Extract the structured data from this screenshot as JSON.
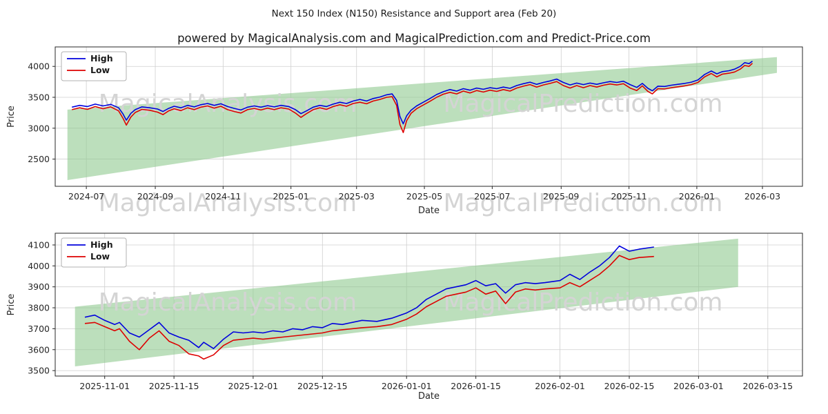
{
  "page": {
    "title": "Next 150 Index (N150) Resistance and Support area (Feb 20)",
    "subtitle": "powered by MagicalAnalysis.com and MagicalPrediction.com and Predict-Price.com"
  },
  "watermarks": [
    "MagicalAnalysis.com",
    "MagicalPrediction.com"
  ],
  "colors": {
    "high": "#0000dd",
    "low": "#dd0000",
    "band": "#8fc98f",
    "grid": "#cfcfcf",
    "spine": "#262626",
    "tick_text": "#262626",
    "watermark": "#d4d4d4"
  },
  "chart_data": [
    {
      "type": "line",
      "xlabel": "Date",
      "ylabel": "Price",
      "legend_position": "upper-left",
      "grid": true,
      "xlim": [
        "2024-06-03",
        "2026-04-06"
      ],
      "ylim": [
        2060,
        4315
      ],
      "y_ticks": [
        2500,
        3000,
        3500,
        4000
      ],
      "x_ticks": [
        {
          "date": "2024-07-01",
          "label": "2024-07"
        },
        {
          "date": "2024-09-01",
          "label": "2024-09"
        },
        {
          "date": "2024-11-01",
          "label": "2024-11"
        },
        {
          "date": "2025-01-01",
          "label": "2025-01"
        },
        {
          "date": "2025-03-01",
          "label": "2025-03"
        },
        {
          "date": "2025-05-01",
          "label": "2025-05"
        },
        {
          "date": "2025-07-01",
          "label": "2025-07"
        },
        {
          "date": "2025-09-01",
          "label": "2025-09"
        },
        {
          "date": "2025-11-01",
          "label": "2025-11"
        },
        {
          "date": "2026-01-01",
          "label": "2026-01"
        },
        {
          "date": "2026-03-01",
          "label": "2026-03"
        }
      ],
      "band": {
        "x": [
          "2024-06-14",
          "2026-03-14"
        ],
        "top": [
          3300,
          4150
        ],
        "bottom": [
          2160,
          3895
        ]
      },
      "series": [
        {
          "label": "High",
          "color_key": "high",
          "column": 1
        },
        {
          "label": "Low",
          "color_key": "low",
          "column": 2
        }
      ],
      "columns": [
        "date",
        "high",
        "low"
      ],
      "rows": [
        [
          "2024-06-18",
          3340,
          3300
        ],
        [
          "2024-06-25",
          3370,
          3330
        ],
        [
          "2024-07-02",
          3350,
          3305
        ],
        [
          "2024-07-09",
          3390,
          3350
        ],
        [
          "2024-07-16",
          3360,
          3315
        ],
        [
          "2024-07-23",
          3385,
          3345
        ],
        [
          "2024-07-30",
          3330,
          3280
        ],
        [
          "2024-08-03",
          3230,
          3160
        ],
        [
          "2024-08-06",
          3130,
          3050
        ],
        [
          "2024-08-10",
          3240,
          3180
        ],
        [
          "2024-08-14",
          3300,
          3255
        ],
        [
          "2024-08-20",
          3345,
          3305
        ],
        [
          "2024-08-27",
          3330,
          3290
        ],
        [
          "2024-09-03",
          3310,
          3260
        ],
        [
          "2024-09-08",
          3270,
          3220
        ],
        [
          "2024-09-13",
          3320,
          3280
        ],
        [
          "2024-09-18",
          3355,
          3315
        ],
        [
          "2024-09-24",
          3330,
          3285
        ],
        [
          "2024-09-30",
          3370,
          3330
        ],
        [
          "2024-10-06",
          3345,
          3300
        ],
        [
          "2024-10-12",
          3380,
          3340
        ],
        [
          "2024-10-18",
          3400,
          3360
        ],
        [
          "2024-10-24",
          3370,
          3325
        ],
        [
          "2024-10-30",
          3395,
          3355
        ],
        [
          "2024-11-05",
          3350,
          3300
        ],
        [
          "2024-11-11",
          3320,
          3270
        ],
        [
          "2024-11-17",
          3295,
          3245
        ],
        [
          "2024-11-23",
          3340,
          3300
        ],
        [
          "2024-11-29",
          3360,
          3320
        ],
        [
          "2024-12-05",
          3340,
          3295
        ],
        [
          "2024-12-11",
          3365,
          3325
        ],
        [
          "2024-12-17",
          3345,
          3300
        ],
        [
          "2024-12-23",
          3370,
          3330
        ],
        [
          "2024-12-30",
          3350,
          3310
        ],
        [
          "2025-01-05",
          3300,
          3245
        ],
        [
          "2025-01-10",
          3235,
          3175
        ],
        [
          "2025-01-15",
          3280,
          3235
        ],
        [
          "2025-01-21",
          3340,
          3300
        ],
        [
          "2025-01-27",
          3370,
          3330
        ],
        [
          "2025-02-02",
          3350,
          3305
        ],
        [
          "2025-02-08",
          3390,
          3350
        ],
        [
          "2025-02-14",
          3420,
          3380
        ],
        [
          "2025-02-20",
          3400,
          3355
        ],
        [
          "2025-02-26",
          3440,
          3400
        ],
        [
          "2025-03-04",
          3465,
          3420
        ],
        [
          "2025-03-10",
          3440,
          3395
        ],
        [
          "2025-03-16",
          3480,
          3440
        ],
        [
          "2025-03-22",
          3505,
          3465
        ],
        [
          "2025-03-28",
          3540,
          3500
        ],
        [
          "2025-04-02",
          3555,
          3510
        ],
        [
          "2025-04-06",
          3450,
          3370
        ],
        [
          "2025-04-09",
          3190,
          3060
        ],
        [
          "2025-04-12",
          3070,
          2930
        ],
        [
          "2025-04-15",
          3200,
          3120
        ],
        [
          "2025-04-19",
          3290,
          3240
        ],
        [
          "2025-04-24",
          3360,
          3315
        ],
        [
          "2025-04-30",
          3420,
          3375
        ],
        [
          "2025-05-06",
          3480,
          3435
        ],
        [
          "2025-05-12",
          3545,
          3500
        ],
        [
          "2025-05-18",
          3590,
          3550
        ],
        [
          "2025-05-24",
          3625,
          3580
        ],
        [
          "2025-05-30",
          3600,
          3555
        ],
        [
          "2025-06-05",
          3640,
          3600
        ],
        [
          "2025-06-11",
          3615,
          3570
        ],
        [
          "2025-06-17",
          3650,
          3610
        ],
        [
          "2025-06-23",
          3630,
          3585
        ],
        [
          "2025-06-29",
          3655,
          3615
        ],
        [
          "2025-07-05",
          3640,
          3595
        ],
        [
          "2025-07-11",
          3665,
          3625
        ],
        [
          "2025-07-17",
          3645,
          3600
        ],
        [
          "2025-07-23",
          3690,
          3650
        ],
        [
          "2025-07-29",
          3720,
          3680
        ],
        [
          "2025-08-04",
          3745,
          3705
        ],
        [
          "2025-08-10",
          3710,
          3665
        ],
        [
          "2025-08-16",
          3740,
          3700
        ],
        [
          "2025-08-22",
          3765,
          3725
        ],
        [
          "2025-08-28",
          3795,
          3755
        ],
        [
          "2025-09-03",
          3740,
          3690
        ],
        [
          "2025-09-09",
          3700,
          3650
        ],
        [
          "2025-09-15",
          3730,
          3690
        ],
        [
          "2025-09-21",
          3705,
          3655
        ],
        [
          "2025-09-27",
          3730,
          3690
        ],
        [
          "2025-10-03",
          3710,
          3665
        ],
        [
          "2025-10-09",
          3735,
          3695
        ],
        [
          "2025-10-15",
          3755,
          3715
        ],
        [
          "2025-10-21",
          3740,
          3700
        ],
        [
          "2025-10-27",
          3760,
          3720
        ],
        [
          "2025-11-02",
          3705,
          3650
        ],
        [
          "2025-11-08",
          3660,
          3610
        ],
        [
          "2025-11-13",
          3725,
          3685
        ],
        [
          "2025-11-18",
          3645,
          3595
        ],
        [
          "2025-11-22",
          3605,
          3555
        ],
        [
          "2025-11-27",
          3680,
          3640
        ],
        [
          "2025-12-03",
          3675,
          3635
        ],
        [
          "2025-12-09",
          3695,
          3655
        ],
        [
          "2025-12-15",
          3710,
          3670
        ],
        [
          "2025-12-21",
          3725,
          3685
        ],
        [
          "2025-12-27",
          3745,
          3705
        ],
        [
          "2026-01-02",
          3780,
          3740
        ],
        [
          "2026-01-08",
          3870,
          3830
        ],
        [
          "2026-01-14",
          3925,
          3885
        ],
        [
          "2026-01-19",
          3880,
          3830
        ],
        [
          "2026-01-24",
          3915,
          3875
        ],
        [
          "2026-01-30",
          3930,
          3890
        ],
        [
          "2026-02-04",
          3955,
          3910
        ],
        [
          "2026-02-09",
          4000,
          3955
        ],
        [
          "2026-02-13",
          4060,
          4015
        ],
        [
          "2026-02-17",
          4045,
          4000
        ],
        [
          "2026-02-20",
          4085,
          4050
        ]
      ]
    },
    {
      "type": "line",
      "xlabel": "Date",
      "ylabel": "Price",
      "legend_position": "upper-left",
      "grid": true,
      "xlim": [
        "2025-10-22",
        "2026-03-22"
      ],
      "ylim": [
        3474,
        4156
      ],
      "y_ticks": [
        3500,
        3600,
        3700,
        3800,
        3900,
        4000,
        4100
      ],
      "x_ticks": [
        {
          "date": "2025-11-01",
          "label": "2025-11-01"
        },
        {
          "date": "2025-11-15",
          "label": "2025-11-15"
        },
        {
          "date": "2025-12-01",
          "label": "2025-12-01"
        },
        {
          "date": "2025-12-15",
          "label": "2025-12-15"
        },
        {
          "date": "2026-01-01",
          "label": "2026-01-01"
        },
        {
          "date": "2026-01-15",
          "label": "2026-01-15"
        },
        {
          "date": "2026-02-01",
          "label": "2026-02-01"
        },
        {
          "date": "2026-02-15",
          "label": "2026-02-15"
        },
        {
          "date": "2026-03-01",
          "label": "2026-03-01"
        },
        {
          "date": "2026-03-15",
          "label": "2026-03-15"
        }
      ],
      "band": {
        "x": [
          "2025-10-26",
          "2026-03-09"
        ],
        "top": [
          3805,
          4130
        ],
        "bottom": [
          3520,
          3900
        ]
      },
      "series": [
        {
          "label": "High",
          "color_key": "high",
          "column": 1
        },
        {
          "label": "Low",
          "color_key": "low",
          "column": 2
        }
      ],
      "columns": [
        "date",
        "high",
        "low"
      ],
      "rows": [
        [
          "2025-10-28",
          3755,
          3725
        ],
        [
          "2025-10-30",
          3765,
          3730
        ],
        [
          "2025-11-01",
          3740,
          3710
        ],
        [
          "2025-11-03",
          3720,
          3690
        ],
        [
          "2025-11-04",
          3730,
          3700
        ],
        [
          "2025-11-06",
          3680,
          3640
        ],
        [
          "2025-11-08",
          3660,
          3600
        ],
        [
          "2025-11-10",
          3695,
          3655
        ],
        [
          "2025-11-12",
          3730,
          3690
        ],
        [
          "2025-11-14",
          3680,
          3640
        ],
        [
          "2025-11-16",
          3660,
          3620
        ],
        [
          "2025-11-18",
          3645,
          3580
        ],
        [
          "2025-11-20",
          3610,
          3570
        ],
        [
          "2025-11-21",
          3635,
          3555
        ],
        [
          "2025-11-23",
          3605,
          3575
        ],
        [
          "2025-11-25",
          3650,
          3620
        ],
        [
          "2025-11-27",
          3685,
          3645
        ],
        [
          "2025-11-29",
          3680,
          3650
        ],
        [
          "2025-12-01",
          3685,
          3655
        ],
        [
          "2025-12-03",
          3680,
          3650
        ],
        [
          "2025-12-05",
          3690,
          3655
        ],
        [
          "2025-12-07",
          3685,
          3660
        ],
        [
          "2025-12-09",
          3700,
          3665
        ],
        [
          "2025-12-11",
          3695,
          3670
        ],
        [
          "2025-12-13",
          3710,
          3675
        ],
        [
          "2025-12-15",
          3705,
          3680
        ],
        [
          "2025-12-17",
          3725,
          3690
        ],
        [
          "2025-12-19",
          3720,
          3695
        ],
        [
          "2025-12-21",
          3730,
          3700
        ],
        [
          "2025-12-23",
          3740,
          3705
        ],
        [
          "2025-12-26",
          3735,
          3710
        ],
        [
          "2025-12-29",
          3750,
          3720
        ],
        [
          "2026-01-01",
          3775,
          3745
        ],
        [
          "2026-01-03",
          3800,
          3770
        ],
        [
          "2026-01-05",
          3840,
          3805
        ],
        [
          "2026-01-07",
          3865,
          3830
        ],
        [
          "2026-01-09",
          3890,
          3855
        ],
        [
          "2026-01-11",
          3900,
          3865
        ],
        [
          "2026-01-13",
          3910,
          3875
        ],
        [
          "2026-01-15",
          3930,
          3895
        ],
        [
          "2026-01-17",
          3905,
          3865
        ],
        [
          "2026-01-19",
          3915,
          3880
        ],
        [
          "2026-01-21",
          3870,
          3820
        ],
        [
          "2026-01-23",
          3910,
          3875
        ],
        [
          "2026-01-25",
          3920,
          3890
        ],
        [
          "2026-01-27",
          3915,
          3885
        ],
        [
          "2026-01-29",
          3920,
          3890
        ],
        [
          "2026-02-01",
          3930,
          3895
        ],
        [
          "2026-02-03",
          3960,
          3920
        ],
        [
          "2026-02-05",
          3935,
          3900
        ],
        [
          "2026-02-07",
          3970,
          3930
        ],
        [
          "2026-02-09",
          4000,
          3960
        ],
        [
          "2026-02-11",
          4040,
          4000
        ],
        [
          "2026-02-13",
          4095,
          4050
        ],
        [
          "2026-02-15",
          4070,
          4030
        ],
        [
          "2026-02-17",
          4080,
          4040
        ],
        [
          "2026-02-20",
          4090,
          4045
        ]
      ]
    }
  ]
}
